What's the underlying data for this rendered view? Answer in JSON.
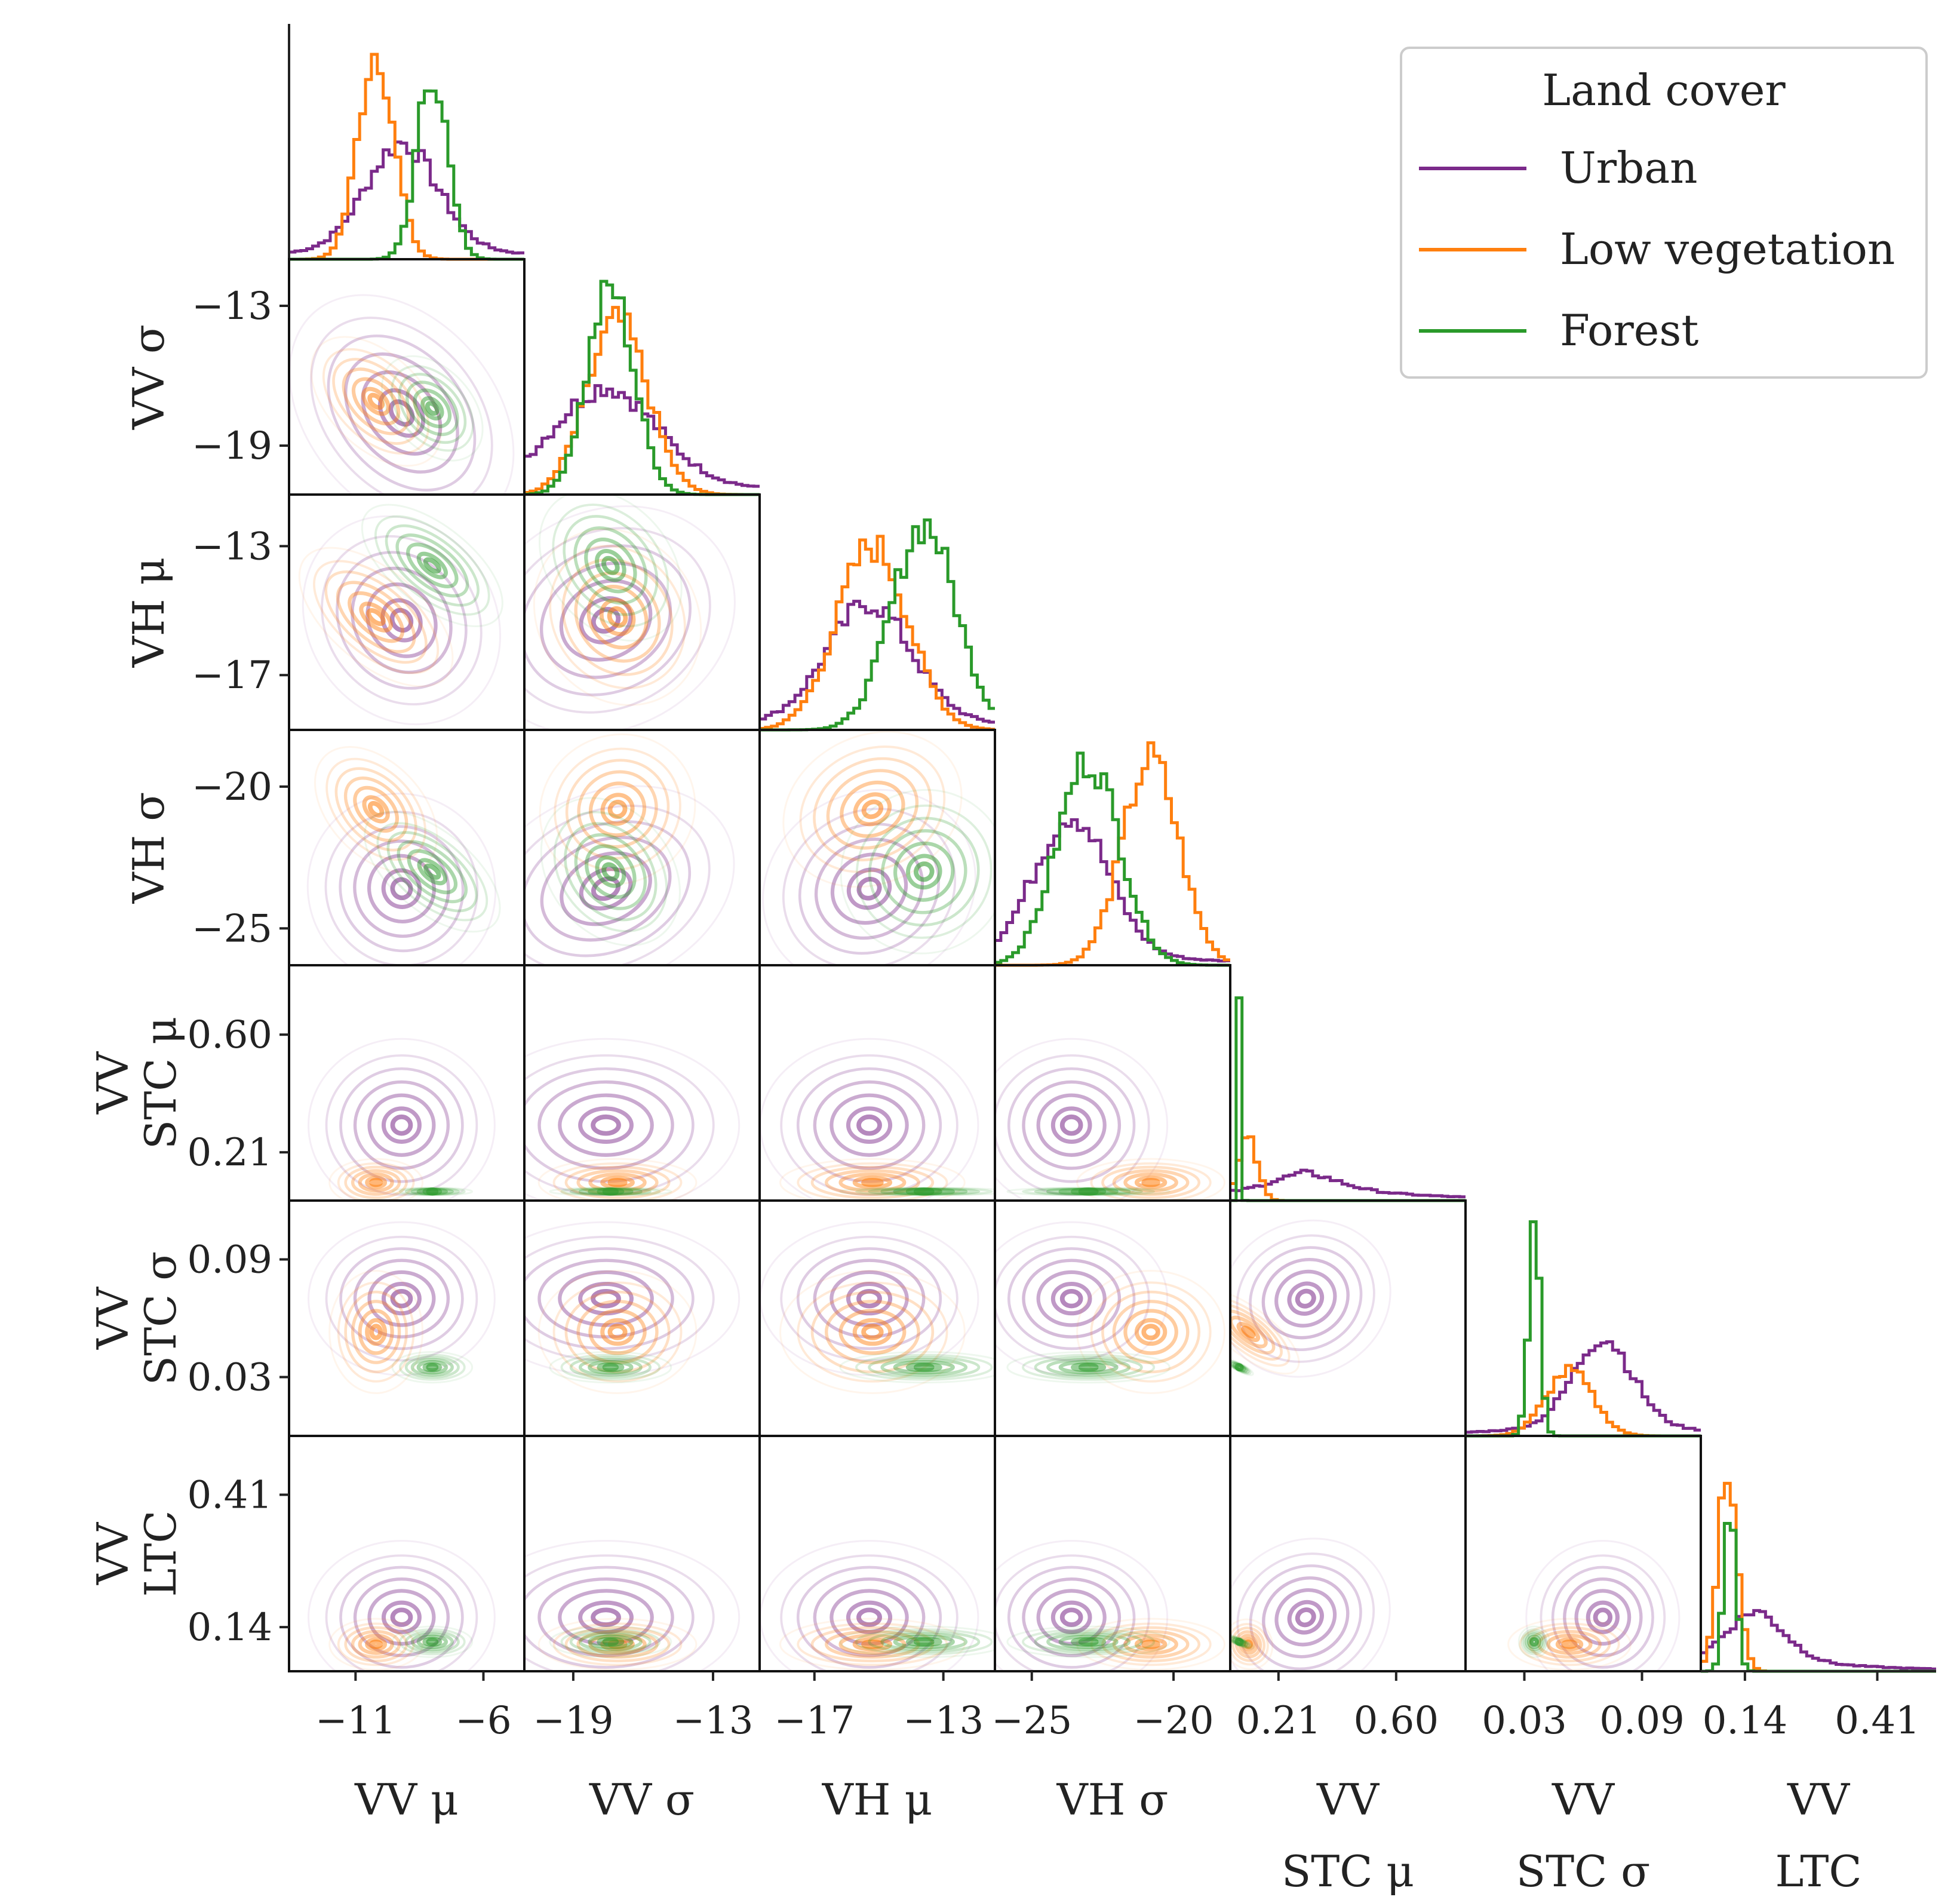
{
  "chart_data": {
    "type": "corner-plot",
    "title": "",
    "variables": [
      {
        "id": "vv_mu",
        "label_lines": [
          "VV μ"
        ],
        "ticks": [
          -11,
          -6
        ],
        "tick_labels": [
          "−11",
          "−6"
        ],
        "range": [
          -13.6,
          -4.4
        ]
      },
      {
        "id": "vv_sigma",
        "label_lines": [
          "VV σ"
        ],
        "ticks": [
          -19,
          -13
        ],
        "tick_labels": [
          "−19",
          "−13"
        ],
        "range": [
          -21.1,
          -11.0
        ]
      },
      {
        "id": "vh_mu",
        "label_lines": [
          "VH μ"
        ],
        "ticks": [
          -17,
          -13
        ],
        "tick_labels": [
          "−17",
          "−13"
        ],
        "range": [
          -18.7,
          -11.4
        ]
      },
      {
        "id": "vh_sigma",
        "label_lines": [
          "VH σ"
        ],
        "ticks": [
          -25,
          -20
        ],
        "tick_labels": [
          "−25",
          "−20"
        ],
        "range": [
          -26.3,
          -18.0
        ]
      },
      {
        "id": "vv_stc_mu",
        "label_lines": [
          "VV",
          "STC μ"
        ],
        "ticks": [
          0.21,
          0.6
        ],
        "tick_labels": [
          "0.21",
          "0.60"
        ],
        "range": [
          0.05,
          0.83
        ]
      },
      {
        "id": "vv_stc_sigma",
        "label_lines": [
          "VV",
          "STC σ"
        ],
        "ticks": [
          0.03,
          0.09
        ],
        "tick_labels": [
          "0.03",
          "0.09"
        ],
        "range": [
          0.0,
          0.12
        ]
      },
      {
        "id": "vv_ltc",
        "label_lines": [
          "VV",
          "LTC"
        ],
        "ticks": [
          0.14,
          0.41
        ],
        "tick_labels": [
          "0.14",
          "0.41"
        ],
        "range": [
          0.05,
          0.53
        ]
      }
    ],
    "series": [
      {
        "name": "Urban",
        "color": "#7b2a8a",
        "means": [
          -9.2,
          -17.6,
          -15.3,
          -23.6,
          0.3,
          0.07,
          0.16
        ],
        "stds": [
          1.4,
          2.2,
          1.3,
          1.3,
          0.11,
          0.015,
          0.06
        ],
        "hist_peaks": [
          0.46,
          0.42,
          0.51,
          0.62,
          0.05,
          0.38,
          0.2
        ]
      },
      {
        "name": "Low vegetation",
        "color": "#ff7f0e",
        "means": [
          -10.2,
          -17.1,
          -15.2,
          -20.8,
          0.11,
          0.053,
          0.105
        ],
        "stds": [
          0.7,
          1.3,
          1.1,
          1.0,
          0.03,
          0.012,
          0.02
        ],
        "hist_peaks": [
          0.96,
          0.8,
          0.85,
          0.95,
          0.3,
          0.3,
          0.92
        ]
      },
      {
        "name": "Forest",
        "color": "#2a9a2a",
        "means": [
          -8.0,
          -17.4,
          -13.6,
          -23.0,
          0.08,
          0.035,
          0.11
        ],
        "stds": [
          0.6,
          1.0,
          1.0,
          1.1,
          0.005,
          0.003,
          0.012
        ],
        "hist_peaks": [
          0.86,
          0.95,
          0.95,
          0.95,
          0.95,
          0.95,
          0.78
        ]
      }
    ],
    "legend": {
      "title": "Land cover",
      "position": "top-right"
    }
  }
}
